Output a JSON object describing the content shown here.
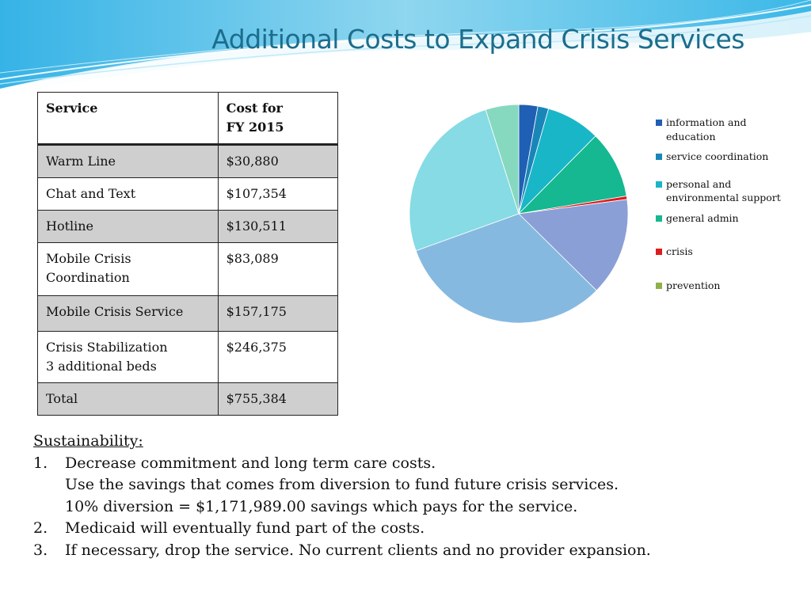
{
  "slide": {
    "title": "Additional Costs to Expand Crisis Services"
  },
  "cost_table": {
    "headers": [
      "Service",
      "Cost for\nFY 2015"
    ],
    "rows": [
      {
        "service": "Warm Line",
        "cost": "$30,880"
      },
      {
        "service": "Chat and Text",
        "cost": "$107,354"
      },
      {
        "service": "Hotline",
        "cost": "$130,511"
      },
      {
        "service": "Mobile Crisis\nCoordination",
        "cost": "$83,089"
      },
      {
        "service": "Mobile Crisis Service",
        "cost": "$157,175"
      },
      {
        "service": "Crisis Stabilization\n3 additional beds",
        "cost": "$246,375"
      },
      {
        "service": "Total",
        "cost": "$755,384"
      }
    ]
  },
  "chart_data": {
    "type": "pie",
    "title": "",
    "legend_position": "right",
    "legend": [
      {
        "label": "information and\neducation",
        "color": "#1f5fb4"
      },
      {
        "label": "service coordination",
        "color": "#1a86b8"
      },
      {
        "label": "personal and\nenvironmental support",
        "color": "#19b6c8"
      },
      {
        "label": "general admin",
        "color": "#15b890"
      },
      {
        "label": "crisis",
        "color": "#e01b1b"
      },
      {
        "label": "prevention",
        "color": "#8fb04a"
      }
    ],
    "slices": [
      {
        "value": 2.8,
        "color": "#1f5fb4"
      },
      {
        "value": 1.6,
        "color": "#1a86b8"
      },
      {
        "value": 8.0,
        "color": "#19b6c8"
      },
      {
        "value": 10.0,
        "color": "#15b890"
      },
      {
        "value": 0.5,
        "color": "#e01b1b"
      },
      {
        "value": 14.5,
        "color": "#8a9fd6"
      },
      {
        "value": 32.1,
        "color": "#86b9e0"
      },
      {
        "value": 25.6,
        "color": "#86dbe4"
      },
      {
        "value": 4.9,
        "color": "#86d9bf"
      }
    ]
  },
  "sustainability": {
    "heading": "Sustainability:",
    "items": [
      {
        "num": "1.",
        "text": "Decrease commitment and long term care costs.",
        "cont": [
          "Use the savings that comes from diversion to fund future crisis services.",
          "10% diversion = $1,171,989.00 savings which pays for the service."
        ]
      },
      {
        "num": "2.",
        "text": "Medicaid will eventually fund part of the costs.",
        "cont": []
      },
      {
        "num": "3.",
        "text": "If necessary, drop the service.  No current clients and no provider expansion.",
        "cont": []
      }
    ]
  }
}
